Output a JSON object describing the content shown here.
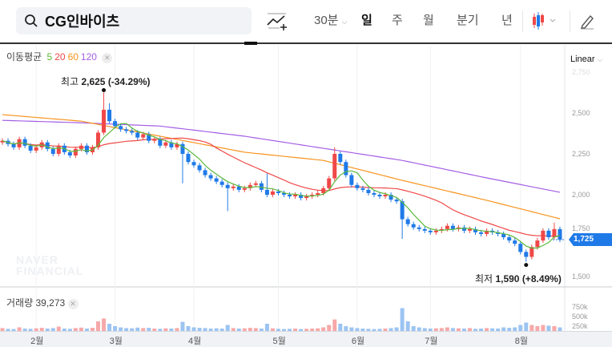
{
  "header": {
    "stock_name": "CG인바이츠",
    "interval": "30분",
    "tabs": [
      "일",
      "주",
      "월",
      "분기",
      "년"
    ],
    "active_tab": "일"
  },
  "indicator": {
    "label": "이동평균",
    "periods": [
      "5",
      "20",
      "60",
      "120"
    ],
    "colors": [
      "#5bb83a",
      "#f04848",
      "#f7931e",
      "#a45ee5"
    ]
  },
  "scale_mode": "Linear",
  "colors": {
    "up": "#f04848",
    "down": "#1f7ae8",
    "current": "#1f7ae8"
  },
  "annotations": {
    "high": {
      "label": "최고",
      "value": "2,625",
      "change": "(-34.29%)",
      "price": 2625,
      "index": 18
    },
    "low": {
      "label": "최저",
      "value": "1,590",
      "change": "(+8.49%)",
      "price": 1590,
      "index": 93
    }
  },
  "current_price": {
    "label": "1,725",
    "value": 1725
  },
  "volume": {
    "label": "거래량",
    "value": "39,273",
    "axis_labels": [
      "750k",
      "500k",
      "250k"
    ]
  },
  "watermark": [
    "NAVER",
    "FINANCIAL"
  ],
  "chart_data": {
    "type": "candlestick",
    "y_ticks": [
      2750,
      2500,
      2250,
      2000,
      1750,
      1500
    ],
    "y_tick_labels": [
      "2,750",
      "2,500",
      "2,250",
      "2,000",
      "1,750",
      "1,500"
    ],
    "x_labels": [
      {
        "label": "2월",
        "index": 6
      },
      {
        "label": "3월",
        "index": 20
      },
      {
        "label": "4월",
        "index": 34
      },
      {
        "label": "5월",
        "index": 49
      },
      {
        "label": "6월",
        "index": 63
      },
      {
        "label": "7월",
        "index": 76
      },
      {
        "label": "8월",
        "index": 92
      }
    ],
    "close": [
      2330,
      2310,
      2290,
      2340,
      2300,
      2270,
      2290,
      2320,
      2280,
      2250,
      2300,
      2260,
      2240,
      2280,
      2300,
      2260,
      2290,
      2380,
      2520,
      2450,
      2420,
      2400,
      2390,
      2380,
      2350,
      2370,
      2330,
      2340,
      2300,
      2320,
      2290,
      2310,
      2250,
      2200,
      2180,
      2150,
      2120,
      2100,
      2080,
      2060,
      2040,
      2050,
      2030,
      2040,
      2060,
      2070,
      2030,
      2000,
      2020,
      2010,
      2000,
      1990,
      2000,
      1980,
      1990,
      2000,
      2010,
      2040,
      2100,
      2250,
      2200,
      2120,
      2060,
      2040,
      2030,
      2010,
      2000,
      1990,
      2000,
      1970,
      1960,
      1850,
      1820,
      1800,
      1790,
      1780,
      1770,
      1780,
      1790,
      1810,
      1790,
      1800,
      1780,
      1790,
      1770,
      1760,
      1780,
      1770,
      1760,
      1740,
      1720,
      1700,
      1650,
      1620,
      1680,
      1720,
      1780,
      1740,
      1790,
      1725
    ],
    "open": [
      2320,
      2330,
      2310,
      2290,
      2340,
      2300,
      2270,
      2290,
      2320,
      2280,
      2250,
      2300,
      2260,
      2240,
      2280,
      2300,
      2260,
      2290,
      2380,
      2520,
      2450,
      2420,
      2400,
      2390,
      2380,
      2350,
      2370,
      2330,
      2340,
      2300,
      2320,
      2290,
      2310,
      2250,
      2200,
      2180,
      2150,
      2120,
      2100,
      2080,
      2060,
      2040,
      2050,
      2030,
      2040,
      2060,
      2070,
      2030,
      2000,
      2020,
      2010,
      2000,
      1990,
      2000,
      1980,
      1990,
      2000,
      2010,
      2040,
      2100,
      2250,
      2200,
      2120,
      2060,
      2040,
      2030,
      2010,
      2000,
      1990,
      2000,
      1970,
      1960,
      1850,
      1820,
      1800,
      1790,
      1780,
      1770,
      1780,
      1790,
      1810,
      1790,
      1800,
      1780,
      1790,
      1770,
      1760,
      1780,
      1770,
      1760,
      1740,
      1720,
      1700,
      1650,
      1620,
      1680,
      1720,
      1780,
      1740,
      1790
    ],
    "high": [
      2345,
      2345,
      2325,
      2355,
      2355,
      2315,
      2305,
      2335,
      2335,
      2295,
      2315,
      2315,
      2275,
      2295,
      2315,
      2315,
      2305,
      2395,
      2625,
      2560,
      2465,
      2435,
      2415,
      2405,
      2395,
      2385,
      2385,
      2355,
      2355,
      2335,
      2335,
      2325,
      2325,
      2265,
      2215,
      2195,
      2165,
      2135,
      2115,
      2095,
      2075,
      2065,
      2065,
      2055,
      2075,
      2085,
      2085,
      2130,
      2035,
      2035,
      2025,
      2015,
      2015,
      2015,
      2005,
      2015,
      2025,
      2055,
      2115,
      2290,
      2265,
      2215,
      2135,
      2075,
      2055,
      2045,
      2025,
      2015,
      2015,
      2015,
      1985,
      1975,
      1865,
      1835,
      1815,
      1805,
      1795,
      1795,
      1805,
      1825,
      1825,
      1815,
      1815,
      1805,
      1805,
      1785,
      1795,
      1795,
      1785,
      1775,
      1755,
      1735,
      1715,
      1665,
      1695,
      1735,
      1795,
      1795,
      1830,
      1805
    ],
    "low": [
      2305,
      2295,
      2275,
      2275,
      2285,
      2255,
      2255,
      2275,
      2265,
      2235,
      2235,
      2245,
      2225,
      2225,
      2265,
      2245,
      2245,
      2275,
      2365,
      2435,
      2405,
      2385,
      2375,
      2365,
      2335,
      2335,
      2315,
      2315,
      2285,
      2285,
      2275,
      2275,
      2070,
      2185,
      2165,
      2135,
      2105,
      2085,
      2065,
      2045,
      1900,
      2025,
      2015,
      2015,
      2025,
      2045,
      2015,
      1985,
      1985,
      1995,
      1985,
      1975,
      1975,
      1965,
      1965,
      1975,
      1985,
      1995,
      2025,
      2085,
      2185,
      2105,
      2045,
      2025,
      2015,
      1995,
      1985,
      1975,
      1975,
      1955,
      1945,
      1730,
      1805,
      1785,
      1775,
      1765,
      1755,
      1755,
      1765,
      1775,
      1775,
      1775,
      1765,
      1765,
      1755,
      1745,
      1745,
      1755,
      1745,
      1725,
      1705,
      1685,
      1635,
      1590,
      1605,
      1665,
      1705,
      1725,
      1725,
      1710
    ],
    "volume_k": [
      120,
      90,
      80,
      150,
      100,
      90,
      110,
      130,
      100,
      120,
      180,
      100,
      90,
      120,
      140,
      100,
      130,
      400,
      520,
      300,
      200,
      150,
      120,
      110,
      140,
      120,
      130,
      100,
      90,
      110,
      100,
      120,
      380,
      200,
      150,
      130,
      120,
      100,
      110,
      100,
      250,
      120,
      100,
      110,
      130,
      120,
      100,
      300,
      110,
      90,
      80,
      90,
      100,
      80,
      90,
      100,
      110,
      150,
      250,
      480,
      300,
      200,
      150,
      120,
      100,
      90,
      80,
      90,
      100,
      120,
      150,
      950,
      400,
      200,
      150,
      120,
      100,
      110,
      120,
      150,
      120,
      110,
      100,
      120,
      90,
      100,
      120,
      110,
      100,
      150,
      130,
      150,
      250,
      350,
      250,
      200,
      250,
      220,
      200,
      150
    ],
    "ma60_samples": {
      "index": [
        0,
        14,
        28,
        43,
        57,
        71,
        86,
        99
      ],
      "value": [
        2490,
        2450,
        2358,
        2260,
        2210,
        2088,
        1966,
        1853
      ]
    },
    "ma120_samples": {
      "index": [
        0,
        14,
        28,
        43,
        57,
        71,
        86,
        99
      ],
      "value": [
        2455,
        2440,
        2420,
        2358,
        2284,
        2210,
        2103,
        2015
      ]
    }
  }
}
